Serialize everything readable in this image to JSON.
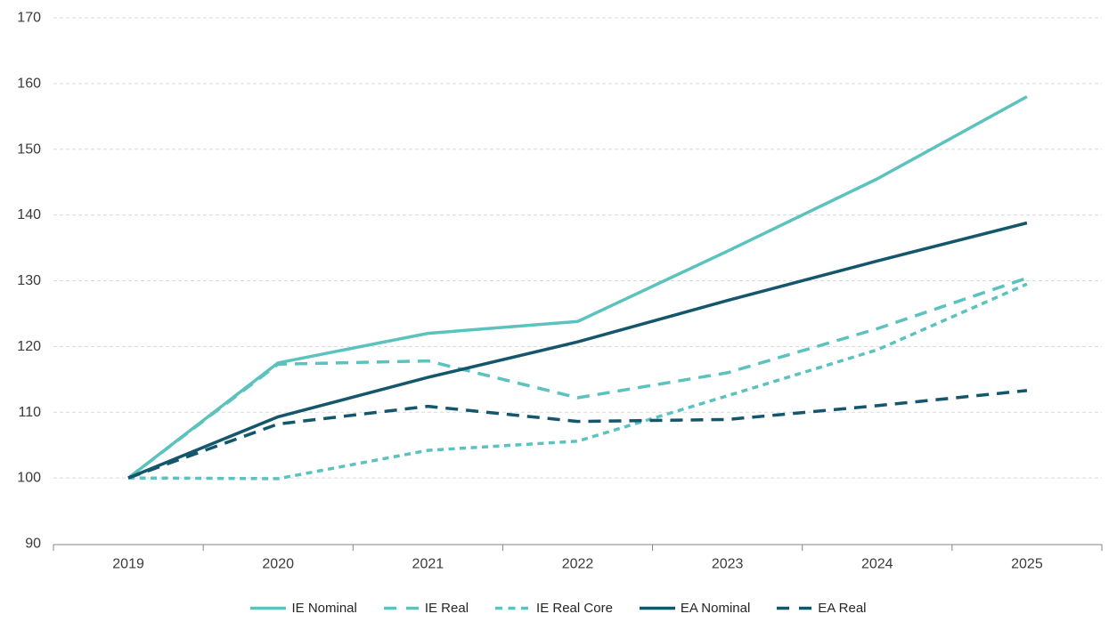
{
  "chart_data": {
    "type": "line",
    "title": "",
    "categories": [
      "2019",
      "2020",
      "2021",
      "2022",
      "2023",
      "2024",
      "2025"
    ],
    "series": [
      {
        "name": "IE Nominal",
        "color": "#5BC2BD",
        "line_style": "solid",
        "values": [
          100,
          117.5,
          122.0,
          123.8,
          134.5,
          145.5,
          158.0
        ]
      },
      {
        "name": "IE Real",
        "color": "#5BC2BD",
        "line_style": "dashed",
        "values": [
          100,
          117.3,
          117.8,
          112.2,
          116.0,
          122.7,
          130.4
        ]
      },
      {
        "name": "IE Real Core",
        "color": "#5BC2BD",
        "line_style": "short-dashed",
        "values": [
          100,
          99.9,
          104.2,
          105.6,
          112.5,
          119.5,
          129.5
        ]
      },
      {
        "name": "EA Nominal",
        "color": "#14566B",
        "line_style": "solid",
        "values": [
          100,
          109.3,
          115.3,
          120.7,
          127.0,
          133.0,
          138.8
        ]
      },
      {
        "name": "EA Real",
        "color": "#14566B",
        "line_style": "dashed",
        "values": [
          100,
          108.2,
          110.9,
          108.6,
          108.9,
          111.0,
          113.3
        ]
      }
    ],
    "index_base": "2019 = 100",
    "ylim": [
      90,
      170
    ],
    "ytick_step": 10,
    "y_tick_labels": [
      "90",
      "100",
      "110",
      "120",
      "130",
      "140",
      "150",
      "160",
      "170"
    ],
    "grid": "horizontal-dashed",
    "legend_position": "bottom"
  },
  "colors": {
    "ie_teal": "#5BC2BD",
    "ea_dark_teal": "#14566B",
    "gridline": "#D9D9D9",
    "axis": "#848484",
    "tick_text": "#3A3A3A",
    "legend_text": "#252525",
    "background": "#FFFFFF"
  }
}
